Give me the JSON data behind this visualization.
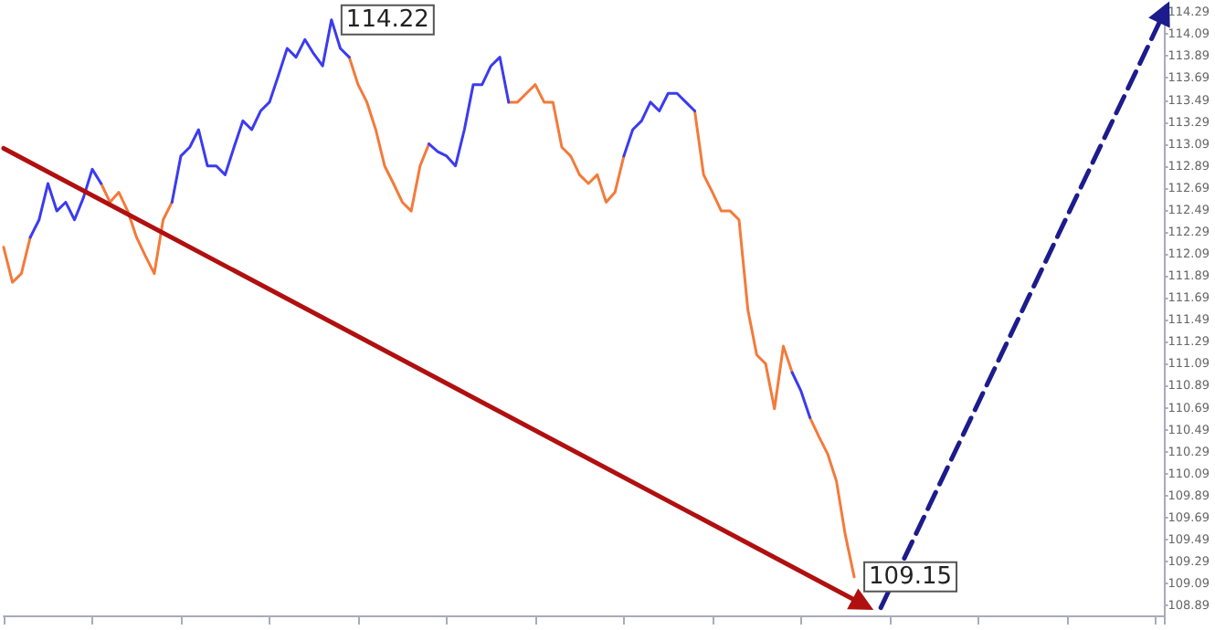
{
  "chart_data": {
    "type": "line",
    "categories": [
      null,
      null,
      null,
      null,
      null,
      null,
      null,
      null,
      null,
      null,
      null,
      null,
      null,
      null,
      null,
      null,
      null,
      null,
      null,
      null,
      null,
      null,
      null,
      null,
      null,
      null,
      null,
      null,
      null,
      null,
      null,
      null,
      null,
      null,
      null,
      null,
      null,
      null,
      null,
      null,
      null,
      null,
      null,
      null,
      null,
      null,
      null,
      null,
      null,
      null,
      null,
      null,
      null,
      null,
      null,
      null,
      null,
      null,
      null,
      null,
      null,
      null,
      null,
      null,
      null,
      null,
      null,
      null,
      null,
      null,
      null,
      null,
      null,
      null,
      null,
      null,
      null,
      null,
      null,
      null,
      null,
      null,
      null,
      null,
      null,
      null,
      null,
      null,
      null,
      null,
      null,
      null,
      null,
      null,
      null,
      null,
      null,
      null,
      null,
      null,
      null,
      null,
      null,
      null,
      null,
      null,
      null,
      null,
      null,
      null,
      null,
      null,
      null,
      null,
      null,
      null,
      null,
      null,
      null,
      null,
      null,
      null,
      null,
      null,
      null,
      null,
      null,
      null,
      null,
      null,
      null,
      null
    ],
    "ylim": [
      108.8,
      114.35
    ],
    "yticks": [
      108.89,
      109.09,
      109.29,
      109.49,
      109.69,
      109.89,
      110.09,
      110.29,
      110.49,
      110.69,
      110.89,
      111.09,
      111.29,
      111.49,
      111.69,
      111.89,
      112.09,
      112.29,
      112.49,
      112.69,
      112.89,
      113.09,
      113.29,
      113.49,
      113.69,
      113.89,
      114.09,
      114.29
    ],
    "tick_labels": "y",
    "grid": false,
    "series": [
      {
        "color": "#f47a3a",
        "values": [
          112.15,
          111.83,
          111.91,
          112.24,
          null,
          null,
          null,
          null,
          null,
          null,
          null,
          112.73,
          112.56,
          112.65,
          112.48,
          112.24,
          112.07,
          111.91,
          112.4,
          112.56,
          null,
          null,
          null,
          null,
          null,
          null,
          null,
          null,
          null,
          null,
          null,
          null,
          null,
          null,
          null,
          null,
          null,
          null,
          null,
          113.88,
          113.63,
          113.47,
          113.22,
          112.89,
          112.73,
          112.56,
          112.48,
          112.89,
          113.09,
          null,
          null,
          null,
          null,
          null,
          null,
          null,
          null,
          113.47,
          113.47,
          113.55,
          113.63,
          113.47,
          113.47,
          113.06,
          112.98,
          112.81,
          112.73,
          112.81,
          112.56,
          112.65,
          112.98,
          null,
          null,
          null,
          null,
          null,
          null,
          null,
          113.39,
          112.81,
          112.65,
          112.48,
          112.48,
          112.4,
          111.58,
          111.17,
          111.09,
          110.68,
          111.25,
          111.01,
          null,
          110.6,
          110.43,
          110.27,
          110.02,
          109.53,
          109.15,
          null,
          null,
          null,
          null,
          null,
          null,
          null,
          null,
          null,
          null,
          null,
          null,
          null,
          null,
          null,
          null,
          null,
          null,
          null,
          null,
          null,
          null,
          null,
          null,
          null,
          null,
          null,
          null,
          null,
          null,
          null,
          null,
          null,
          null,
          null
        ]
      },
      {
        "color": "#3b3bf0",
        "values": [
          null,
          null,
          null,
          112.24,
          112.4,
          112.73,
          112.48,
          112.56,
          112.4,
          112.6,
          112.86,
          112.73,
          null,
          null,
          null,
          null,
          null,
          null,
          null,
          112.56,
          112.98,
          113.06,
          113.22,
          112.89,
          112.89,
          112.81,
          113.06,
          113.3,
          113.22,
          113.39,
          113.47,
          113.71,
          113.96,
          113.88,
          114.04,
          113.91,
          113.8,
          114.22,
          113.96,
          113.88,
          null,
          null,
          null,
          null,
          null,
          null,
          null,
          null,
          113.09,
          113.02,
          112.98,
          112.89,
          113.22,
          113.63,
          113.63,
          113.8,
          113.88,
          113.47,
          null,
          null,
          null,
          null,
          null,
          null,
          null,
          null,
          null,
          null,
          null,
          null,
          112.98,
          113.22,
          113.3,
          113.47,
          113.39,
          113.55,
          113.55,
          113.47,
          113.39,
          null,
          null,
          null,
          null,
          null,
          null,
          null,
          null,
          null,
          null,
          111.01,
          110.84,
          110.6,
          null,
          null,
          null,
          null,
          null,
          null,
          null,
          null,
          null,
          null,
          null,
          null,
          null,
          null,
          null,
          null,
          null,
          null,
          null,
          null,
          null,
          null,
          null,
          null,
          null,
          null,
          null,
          null,
          null,
          null,
          null,
          null,
          null,
          null,
          null,
          null,
          null,
          null,
          null,
          null
        ]
      },
      {
        "color": "#b01010",
        "line_style": "solid",
        "marker": "triangle",
        "values": [
          113.05,
          null,
          null,
          null,
          null,
          null,
          null,
          null,
          null,
          null,
          null,
          null,
          null,
          null,
          null,
          null,
          null,
          null,
          null,
          null,
          null,
          null,
          null,
          null,
          null,
          null,
          null,
          null,
          null,
          null,
          null,
          null,
          null,
          null,
          null,
          null,
          null,
          null,
          null,
          null,
          null,
          null,
          null,
          null,
          null,
          null,
          null,
          null,
          null,
          null,
          null,
          null,
          null,
          null,
          null,
          null,
          null,
          null,
          null,
          null,
          null,
          null,
          null,
          null,
          null,
          null,
          null,
          null,
          null,
          null,
          null,
          null,
          null,
          null,
          null,
          null,
          null,
          null,
          null,
          null,
          null,
          null,
          null,
          null,
          null,
          null,
          null,
          null,
          null,
          null,
          null,
          null,
          null,
          null,
          null,
          null,
          null,
          108.9,
          null,
          null,
          null,
          null,
          null,
          null,
          null,
          null,
          null,
          null,
          null,
          null,
          null,
          null,
          null,
          null,
          null,
          null,
          null,
          null,
          null,
          null,
          null,
          null,
          null,
          null,
          null,
          null,
          null,
          null,
          null,
          null,
          null,
          null
        ]
      },
      {
        "color": "#1c1c8c",
        "line_style": "dashed",
        "marker": "triangle",
        "values": [
          null,
          null,
          null,
          null,
          null,
          null,
          null,
          null,
          null,
          null,
          null,
          null,
          null,
          null,
          null,
          null,
          null,
          null,
          null,
          null,
          null,
          null,
          null,
          null,
          null,
          null,
          null,
          null,
          null,
          null,
          null,
          null,
          null,
          null,
          null,
          null,
          null,
          null,
          null,
          null,
          null,
          null,
          null,
          null,
          null,
          null,
          null,
          null,
          null,
          null,
          null,
          null,
          null,
          null,
          null,
          null,
          null,
          null,
          null,
          null,
          null,
          null,
          null,
          null,
          null,
          null,
          null,
          null,
          null,
          null,
          null,
          null,
          null,
          null,
          null,
          null,
          null,
          null,
          null,
          null,
          null,
          null,
          null,
          null,
          null,
          null,
          null,
          null,
          null,
          null,
          null,
          null,
          null,
          null,
          null,
          null,
          null,
          null,
          null,
          108.87,
          null,
          null,
          null,
          null,
          null,
          null,
          null,
          null,
          null,
          null,
          null,
          null,
          null,
          null,
          null,
          null,
          null,
          null,
          null,
          null,
          null,
          null,
          null,
          null,
          null,
          null,
          null,
          null,
          null,
          null,
          null,
          114.29
        ]
      }
    ],
    "annotations": [
      "114.22",
      "109.15"
    ]
  }
}
